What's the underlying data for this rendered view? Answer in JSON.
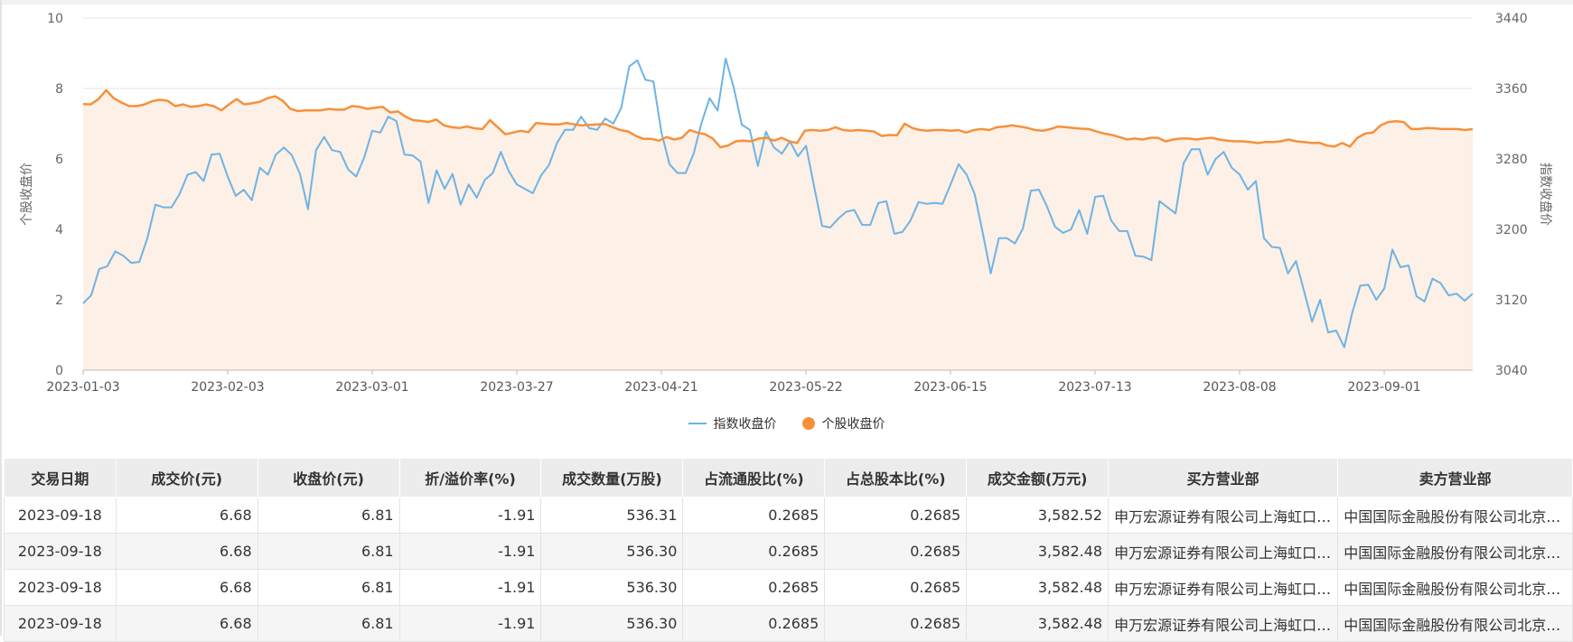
{
  "chart_data": {
    "type": "line",
    "x_ticks": [
      "2023-01-03",
      "2023-02-03",
      "2023-03-01",
      "2023-03-27",
      "2023-04-21",
      "2023-05-22",
      "2023-06-15",
      "2023-07-13",
      "2023-08-08",
      "2023-09-01"
    ],
    "left_axis": {
      "label": "个股收盘价",
      "ticks": [
        "0",
        "2",
        "4",
        "6",
        "8",
        "10"
      ],
      "min": 0,
      "max": 10
    },
    "right_axis": {
      "label": "指数收盘价",
      "ticks": [
        "3040",
        "3120",
        "3200",
        "3280",
        "3360",
        "3440"
      ],
      "min": 3040,
      "max": 3440
    },
    "legend_position": "bottom-center",
    "grid": true,
    "series": [
      {
        "name": "指数收盘价",
        "axis": "right",
        "color": "#6fb3e4",
        "values": [
          3116,
          3125,
          3155,
          3158,
          3175,
          3170,
          3162,
          3163,
          3190,
          3228,
          3225,
          3225,
          3240,
          3262,
          3265,
          3255,
          3285,
          3286,
          3260,
          3238,
          3245,
          3233,
          3270,
          3262,
          3285,
          3293,
          3284,
          3263,
          3223,
          3290,
          3305,
          3290,
          3288,
          3268,
          3260,
          3282,
          3312,
          3310,
          3328,
          3323,
          3285,
          3284,
          3277,
          3230,
          3267,
          3246,
          3263,
          3228,
          3251,
          3236,
          3256,
          3264,
          3288,
          3266,
          3251,
          3246,
          3241,
          3261,
          3273,
          3298,
          3313,
          3313,
          3328,
          3315,
          3313,
          3326,
          3320,
          3338,
          3385,
          3392,
          3370,
          3368,
          3310,
          3274,
          3264,
          3264,
          3286,
          3321,
          3349,
          3335,
          3394,
          3361,
          3319,
          3313,
          3272,
          3311,
          3293,
          3286,
          3300,
          3283,
          3295,
          3249,
          3204,
          3202,
          3212,
          3220,
          3222,
          3205,
          3205,
          3230,
          3232,
          3195,
          3197,
          3210,
          3231,
          3229,
          3230,
          3229,
          3251,
          3274,
          3262,
          3240,
          3196,
          3150,
          3190,
          3190,
          3184,
          3201,
          3244,
          3245,
          3226,
          3203,
          3196,
          3200,
          3222,
          3195,
          3237,
          3238,
          3210,
          3198,
          3198,
          3170,
          3169,
          3165,
          3232,
          3225,
          3218,
          3275,
          3291,
          3291,
          3262,
          3280,
          3288,
          3270,
          3262,
          3245,
          3255,
          3190,
          3180,
          3179,
          3150,
          3164,
          3130,
          3095,
          3120,
          3083,
          3085,
          3066,
          3105,
          3136,
          3137,
          3120,
          3133,
          3177,
          3157,
          3159,
          3124,
          3118,
          3144,
          3139,
          3125,
          3127,
          3119,
          3127
        ]
      },
      {
        "name": "个股收盘价",
        "axis": "left",
        "color": "#f5913b",
        "values": [
          7.56,
          7.55,
          7.7,
          7.95,
          7.72,
          7.6,
          7.5,
          7.5,
          7.55,
          7.64,
          7.68,
          7.65,
          7.5,
          7.55,
          7.48,
          7.5,
          7.55,
          7.5,
          7.38,
          7.55,
          7.7,
          7.55,
          7.58,
          7.62,
          7.72,
          7.78,
          7.65,
          7.42,
          7.36,
          7.38,
          7.38,
          7.38,
          7.42,
          7.4,
          7.4,
          7.5,
          7.48,
          7.42,
          7.45,
          7.48,
          7.32,
          7.35,
          7.2,
          7.1,
          7.08,
          7.05,
          7.12,
          6.95,
          6.9,
          6.88,
          6.92,
          6.87,
          6.85,
          7.1,
          6.9,
          6.7,
          6.75,
          6.8,
          6.76,
          7.02,
          7.0,
          6.98,
          6.98,
          7.02,
          6.98,
          6.95,
          6.97,
          6.98,
          6.99,
          6.9,
          6.82,
          6.78,
          6.65,
          6.57,
          6.57,
          6.52,
          6.62,
          6.55,
          6.6,
          6.82,
          6.75,
          6.7,
          6.58,
          6.33,
          6.38,
          6.5,
          6.52,
          6.5,
          6.58,
          6.6,
          6.52,
          6.6,
          6.5,
          6.45,
          6.8,
          6.82,
          6.8,
          6.82,
          6.9,
          6.82,
          6.8,
          6.82,
          6.8,
          6.78,
          6.65,
          6.68,
          6.67,
          7.0,
          6.88,
          6.82,
          6.8,
          6.82,
          6.82,
          6.8,
          6.82,
          6.75,
          6.82,
          6.85,
          6.82,
          6.9,
          6.92,
          6.95,
          6.92,
          6.88,
          6.82,
          6.8,
          6.85,
          6.92,
          6.9,
          6.88,
          6.86,
          6.85,
          6.78,
          6.72,
          6.68,
          6.62,
          6.55,
          6.58,
          6.55,
          6.6,
          6.6,
          6.5,
          6.55,
          6.58,
          6.58,
          6.55,
          6.58,
          6.6,
          6.55,
          6.52,
          6.5,
          6.5,
          6.48,
          6.45,
          6.48,
          6.48,
          6.5,
          6.55,
          6.5,
          6.48,
          6.45,
          6.46,
          6.38,
          6.35,
          6.45,
          6.35,
          6.6,
          6.72,
          6.75,
          6.95,
          7.05,
          7.07,
          7.05,
          6.85,
          6.85,
          6.88,
          6.87,
          6.85,
          6.85,
          6.85,
          6.82,
          6.85
        ]
      }
    ]
  },
  "table": {
    "columns": [
      "交易日期",
      "成交价(元)",
      "收盘价(元)",
      "折/溢价率(%)",
      "成交数量(万股)",
      "占流通股比(%)",
      "占总股本比(%)",
      "成交金额(万元)",
      "买方营业部",
      "卖方营业部"
    ],
    "rows": [
      [
        "2023-09-18",
        "6.68",
        "6.81",
        "-1.91",
        "536.31",
        "0.2685",
        "0.2685",
        "3,582.52",
        "申万宏源证券有限公司上海虹口区黄河路证券营业部",
        "中国国际金融股份有限公司北京建国门外大街证券营业部"
      ],
      [
        "2023-09-18",
        "6.68",
        "6.81",
        "-1.91",
        "536.30",
        "0.2685",
        "0.2685",
        "3,582.48",
        "申万宏源证券有限公司上海虹口区黄河路证券营业部",
        "中国国际金融股份有限公司北京建国门外大街证券营业部"
      ],
      [
        "2023-09-18",
        "6.68",
        "6.81",
        "-1.91",
        "536.30",
        "0.2685",
        "0.2685",
        "3,582.48",
        "申万宏源证券有限公司上海虹口区黄河路证券营业部",
        "中国国际金融股份有限公司北京建国门外大街证券营业部"
      ],
      [
        "2023-09-18",
        "6.68",
        "6.81",
        "-1.91",
        "536.30",
        "0.2685",
        "0.2685",
        "3,582.48",
        "申万宏源证券有限公司上海虹口区黄河路证券营业部",
        "中国国际金融股份有限公司北京建国门外大街证券营业部"
      ]
    ]
  }
}
